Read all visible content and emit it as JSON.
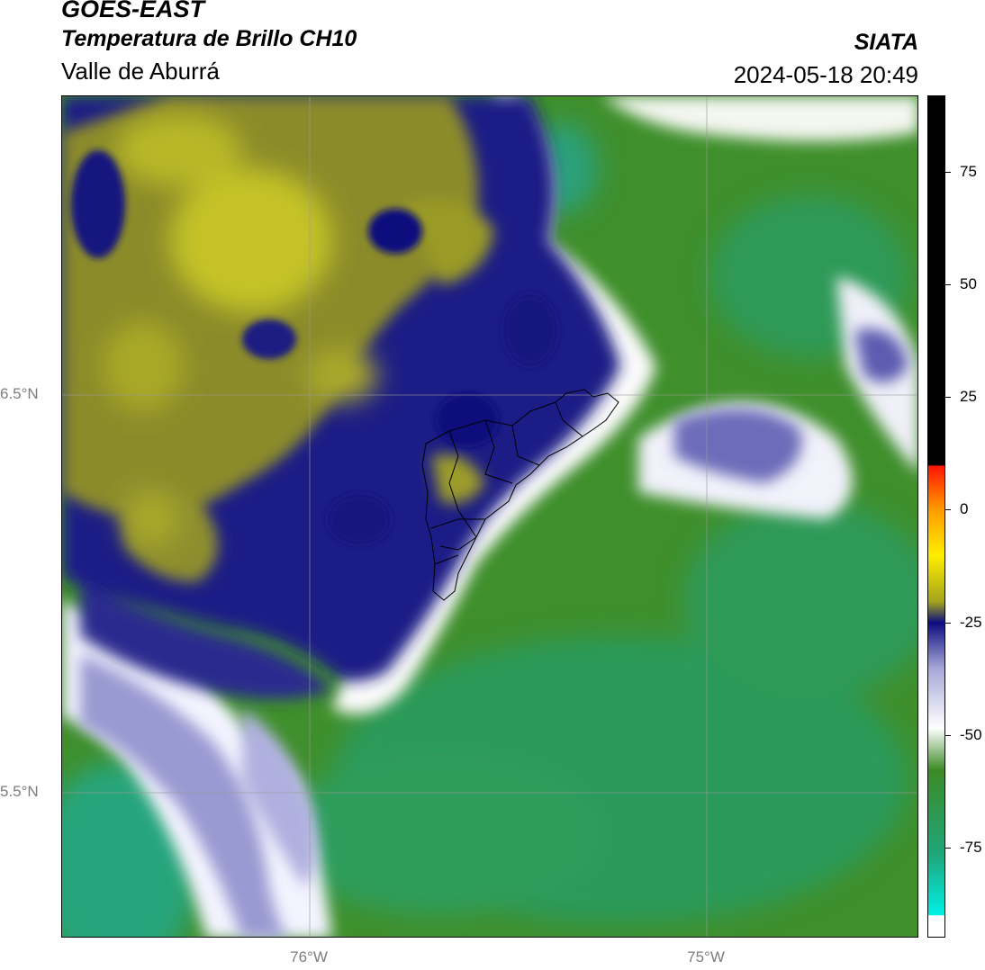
{
  "header": {
    "satellite": "GOES-EAST",
    "product": "Temperatura de Brillo CH10",
    "region": "Valle de Aburrá",
    "organization": "SIATA",
    "timestamp": "2024-05-18 20:49"
  },
  "map": {
    "lat_labels": [
      "6.5°N",
      "5.5°N"
    ],
    "lon_labels": [
      "76°W",
      "75°W"
    ],
    "gridlines": true
  },
  "colorbar": {
    "tick_labels": [
      "75",
      "50",
      "25",
      "0",
      "-25",
      "-50",
      "-75"
    ],
    "tick_values": [
      75,
      50,
      25,
      0,
      -25,
      -50,
      -75
    ],
    "range": [
      -95,
      92
    ],
    "colors": {
      "above_25": "#000000",
      "red": "#ff1500",
      "orange": "#ff9900",
      "yellow": "#ffee00",
      "olive": "#a3a31c",
      "navy": "#0d0d80",
      "lavender": "#a8a8d8",
      "white": "#ffffff",
      "green": "#3c8a26",
      "teal": "#1fa67a",
      "cyan": "#00f0e6"
    }
  }
}
